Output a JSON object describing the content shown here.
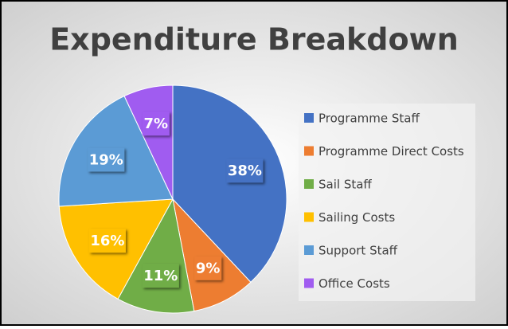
{
  "chart_data": {
    "type": "pie",
    "title": "Expenditure Breakdown",
    "categories": [
      "Programme Staff",
      "Programme Direct Costs",
      "Sail Staff",
      "Sailing Costs",
      "Support Staff",
      "Office Costs"
    ],
    "values": [
      38,
      9,
      11,
      16,
      19,
      7
    ],
    "value_labels": [
      "38%",
      "9%",
      "11%",
      "16%",
      "19%",
      "7%"
    ],
    "colors": [
      "#4472c4",
      "#ed7d31",
      "#70ad47",
      "#ffc000",
      "#5b9bd5",
      "#a05cf0"
    ],
    "legend": "right"
  }
}
